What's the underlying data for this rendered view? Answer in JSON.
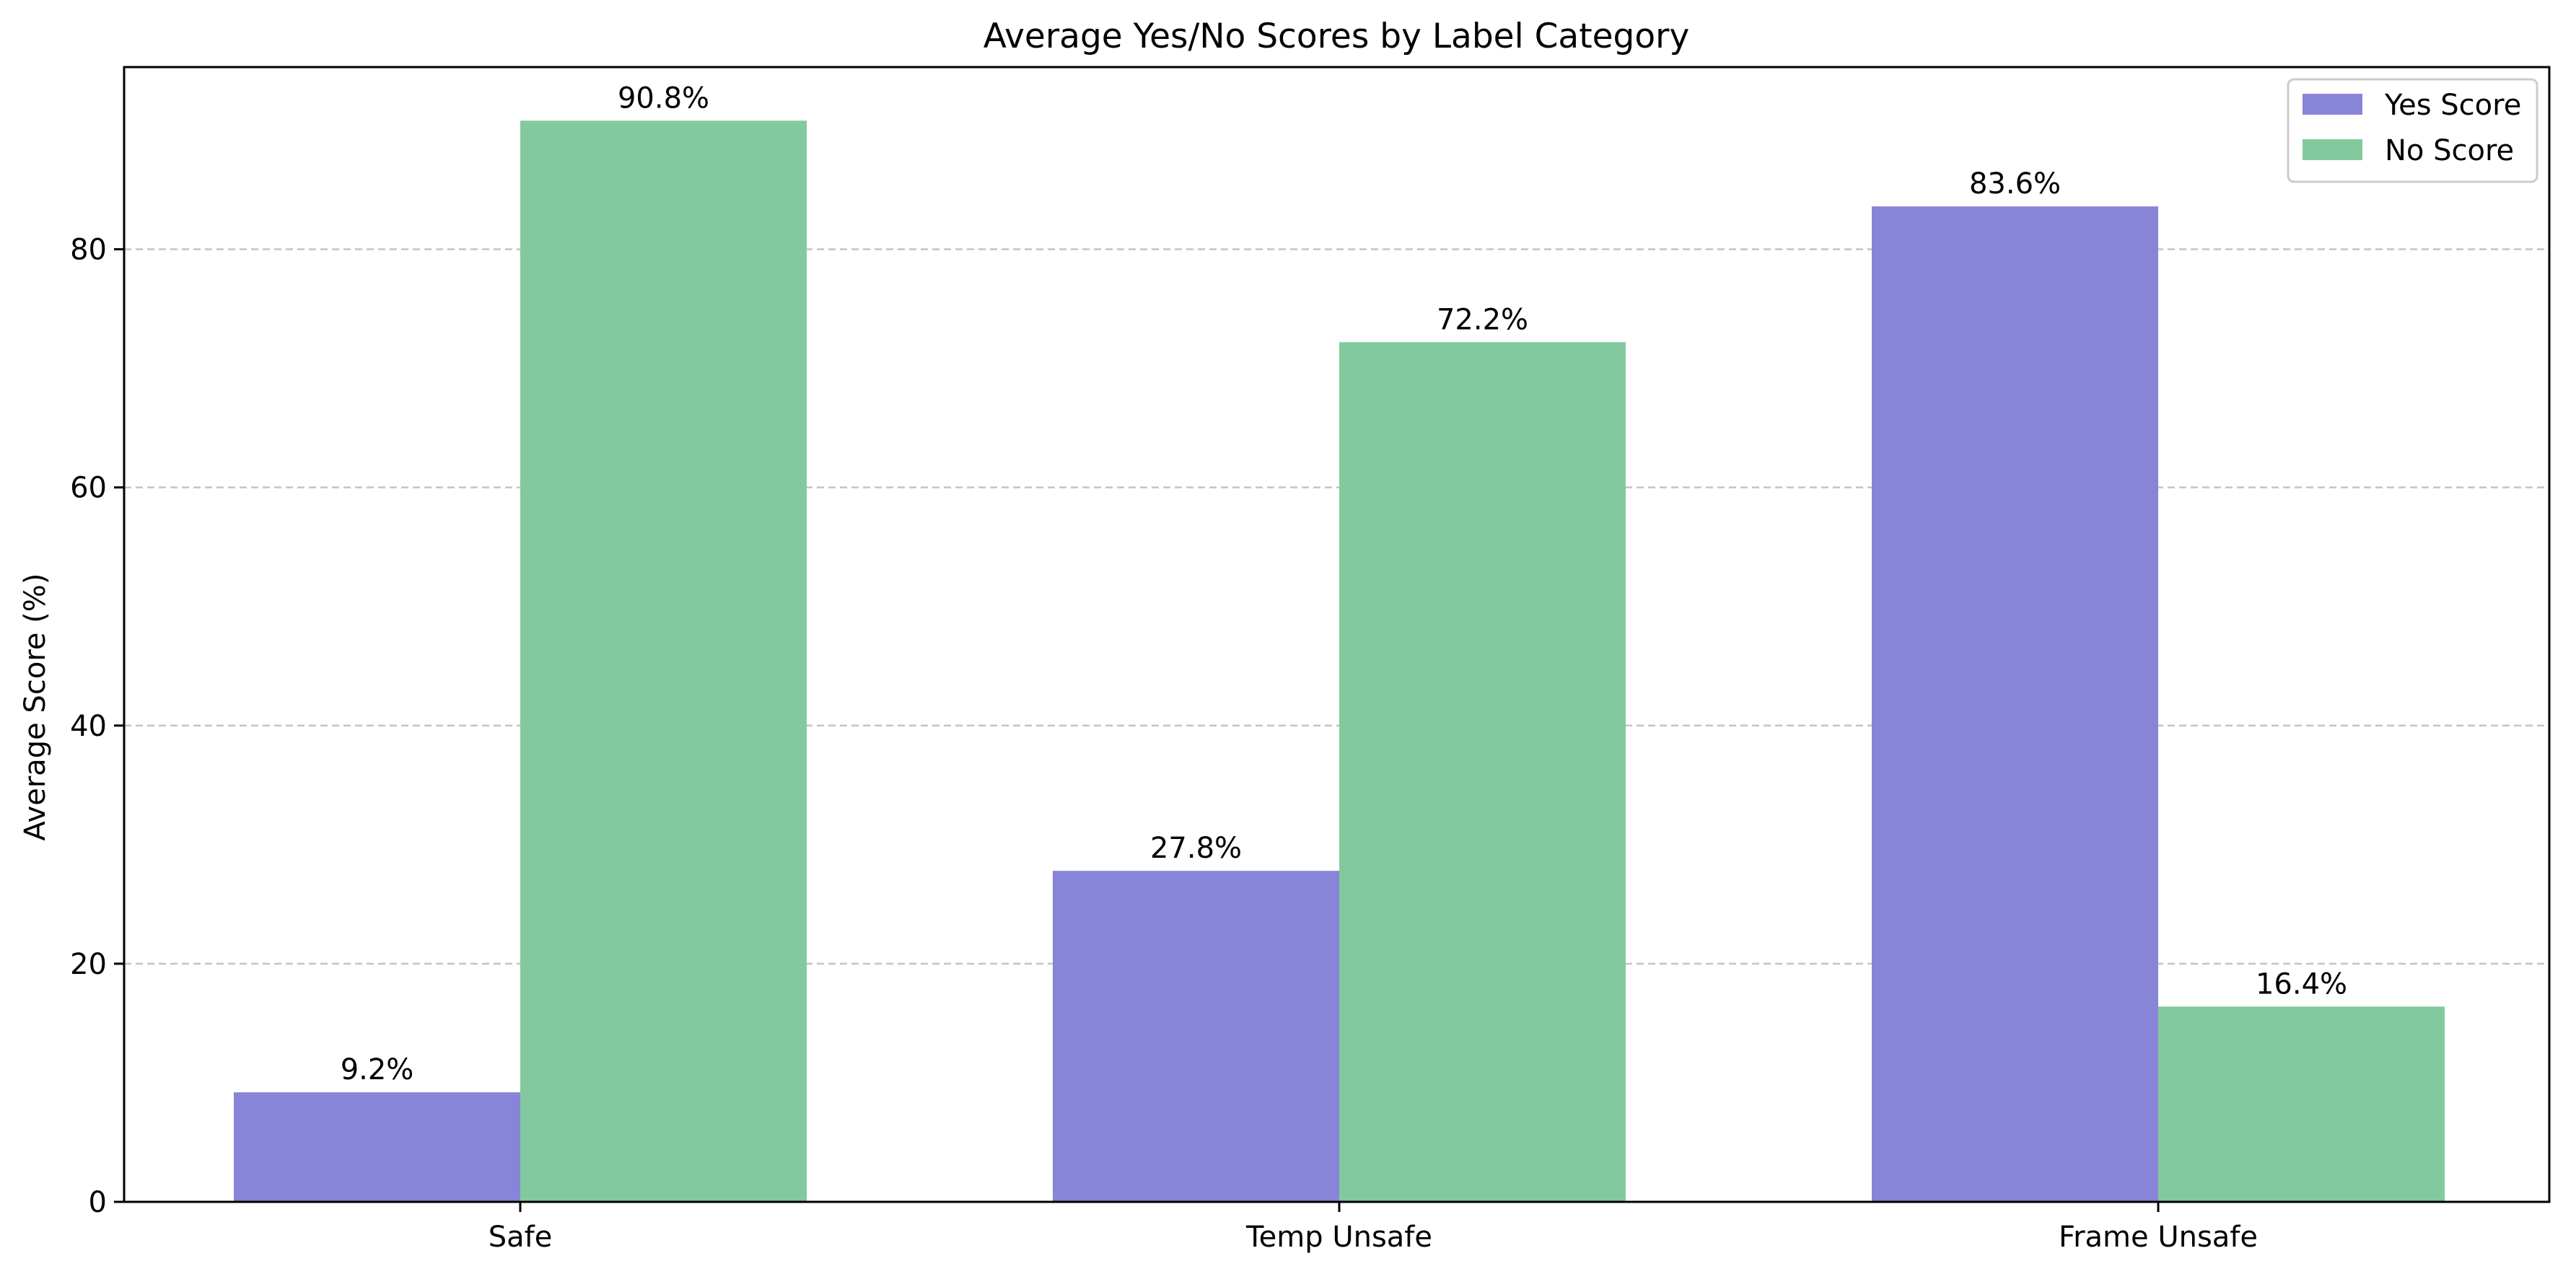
{
  "chart_data": {
    "type": "bar",
    "title": "Average Yes/No Scores by Label Category",
    "xlabel": "",
    "ylabel": "Average Score (%)",
    "categories": [
      "Safe",
      "Temp Unsafe",
      "Frame Unsafe"
    ],
    "series": [
      {
        "name": "Yes Score",
        "values": [
          9.2,
          27.8,
          83.6
        ],
        "color": "#8884d8"
      },
      {
        "name": "No Score",
        "values": [
          90.8,
          72.2,
          16.4
        ],
        "color": "#82ca9d"
      }
    ],
    "data_labels": [
      [
        "9.2%",
        "27.8%",
        "83.6%"
      ],
      [
        "90.8%",
        "72.2%",
        "16.4%"
      ]
    ],
    "ylim": [
      0,
      95.3
    ],
    "yticks": [
      0,
      20,
      40,
      60,
      80
    ],
    "grid": "y-dashed",
    "legend_position": "top-right"
  }
}
